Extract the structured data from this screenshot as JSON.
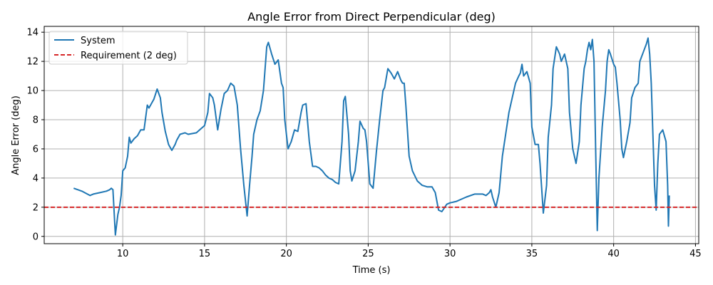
{
  "chart_data": {
    "type": "line",
    "title": "Angle Error from Direct Perpendicular (deg)",
    "xlabel": "Time (s)",
    "ylabel": "Angle Error (deg)",
    "xlim": [
      5.2,
      45.2
    ],
    "ylim": [
      -0.5,
      14.4
    ],
    "xticks": [
      10,
      15,
      20,
      25,
      30,
      35,
      40,
      45
    ],
    "yticks": [
      0,
      2,
      4,
      6,
      8,
      10,
      12,
      14
    ],
    "grid": true,
    "legend_position": "top-left",
    "series": [
      {
        "name": "System",
        "color": "#1f77b4",
        "style": "solid",
        "x": [
          7.0,
          7.5,
          8.0,
          8.2,
          8.6,
          9.0,
          9.2,
          9.3,
          9.4,
          9.55,
          9.7,
          9.8,
          9.9,
          10.0,
          10.15,
          10.3,
          10.4,
          10.5,
          10.7,
          10.9,
          11.1,
          11.3,
          11.5,
          11.6,
          11.7,
          11.8,
          11.9,
          12.1,
          12.3,
          12.4,
          12.6,
          12.8,
          13.0,
          13.2,
          13.3,
          13.5,
          13.8,
          14.0,
          14.5,
          14.8,
          15.0,
          15.2,
          15.3,
          15.5,
          15.6,
          15.8,
          16.0,
          16.2,
          16.4,
          16.6,
          16.8,
          17.0,
          17.2,
          17.4,
          17.6,
          17.75,
          17.9,
          18.0,
          18.2,
          18.4,
          18.6,
          18.8,
          18.9,
          19.1,
          19.3,
          19.5,
          19.7,
          19.8,
          19.9,
          20.1,
          20.3,
          20.5,
          20.7,
          20.9,
          21.0,
          21.2,
          21.4,
          21.6,
          21.7,
          21.8,
          22.0,
          22.2,
          22.4,
          22.6,
          22.8,
          23.0,
          23.2,
          23.4,
          23.5,
          23.6,
          23.8,
          23.9,
          24.0,
          24.2,
          24.4,
          24.5,
          24.7,
          24.8,
          24.9,
          25.1,
          25.3,
          25.5,
          25.7,
          25.9,
          26.0,
          26.2,
          26.4,
          26.6,
          26.8,
          27.0,
          27.1,
          27.2,
          27.3,
          27.5,
          27.7,
          28.0,
          28.3,
          28.6,
          28.9,
          29.1,
          29.3,
          29.5,
          29.8,
          30.0,
          30.4,
          30.8,
          31.0,
          31.5,
          32.0,
          32.2,
          32.4,
          32.5,
          32.6,
          32.8,
          33.0,
          33.2,
          33.4,
          33.6,
          33.8,
          34.0,
          34.2,
          34.3,
          34.4,
          34.5,
          34.7,
          34.9,
          35.0,
          35.2,
          35.4,
          35.5,
          35.7,
          35.9,
          36.0,
          36.2,
          36.3,
          36.5,
          36.7,
          36.8,
          37.0,
          37.2,
          37.3,
          37.5,
          37.7,
          37.9,
          38.0,
          38.2,
          38.3,
          38.4,
          38.5,
          38.6,
          38.7,
          38.8,
          38.9,
          39.0,
          39.1,
          39.3,
          39.5,
          39.6,
          39.7,
          39.8,
          40.0,
          40.1,
          40.2,
          40.4,
          40.5,
          40.6,
          40.8,
          41.0,
          41.1,
          41.3,
          41.5,
          41.6,
          41.8,
          42.0,
          42.1,
          42.2,
          42.3,
          42.4,
          42.5,
          42.6,
          42.7,
          42.8,
          43.0,
          43.2,
          43.3,
          43.35,
          43.4
        ],
        "y": [
          3.3,
          3.1,
          2.8,
          2.9,
          3.0,
          3.1,
          3.2,
          3.3,
          3.2,
          0.1,
          1.5,
          2.0,
          2.8,
          4.5,
          4.7,
          5.5,
          6.8,
          6.4,
          6.7,
          6.9,
          7.3,
          7.3,
          9.0,
          8.8,
          9.0,
          9.2,
          9.4,
          10.1,
          9.5,
          8.5,
          7.2,
          6.3,
          5.9,
          6.3,
          6.6,
          7.0,
          7.1,
          7.0,
          7.1,
          7.4,
          7.6,
          8.5,
          9.8,
          9.5,
          9.0,
          7.3,
          8.7,
          9.8,
          10.0,
          10.5,
          10.3,
          9.0,
          6.0,
          3.5,
          1.4,
          3.5,
          5.5,
          7.0,
          8.0,
          8.6,
          10.0,
          13.0,
          13.3,
          12.5,
          11.8,
          12.1,
          10.5,
          10.2,
          8.0,
          6.0,
          6.5,
          7.3,
          7.2,
          8.5,
          9.0,
          9.1,
          6.5,
          4.8,
          4.8,
          4.8,
          4.7,
          4.5,
          4.2,
          4.0,
          3.9,
          3.7,
          3.6,
          6.5,
          9.3,
          9.6,
          7.0,
          4.5,
          3.8,
          4.5,
          6.5,
          7.9,
          7.4,
          7.3,
          6.5,
          3.6,
          3.3,
          5.8,
          8.0,
          10.0,
          10.2,
          11.5,
          11.2,
          10.8,
          11.3,
          10.7,
          10.5,
          10.5,
          9.0,
          5.5,
          4.5,
          3.8,
          3.5,
          3.4,
          3.4,
          3.0,
          1.8,
          1.7,
          2.2,
          2.3,
          2.4,
          2.6,
          2.7,
          2.9,
          2.9,
          2.8,
          3.0,
          3.2,
          2.7,
          2.0,
          3.0,
          5.5,
          7.0,
          8.5,
          9.5,
          10.5,
          11.0,
          11.2,
          11.8,
          11.0,
          11.3,
          10.5,
          7.5,
          6.3,
          6.3,
          5.0,
          1.6,
          3.5,
          6.8,
          9.0,
          11.5,
          13.0,
          12.5,
          12.0,
          12.5,
          11.5,
          8.5,
          6.0,
          5.0,
          6.5,
          9.0,
          11.5,
          12.0,
          12.8,
          13.3,
          12.8,
          13.5,
          12.0,
          6.0,
          0.4,
          4.0,
          7.5,
          10.0,
          12.0,
          12.8,
          12.5,
          11.8,
          11.6,
          10.5,
          8.0,
          6.0,
          5.4,
          6.5,
          7.8,
          9.5,
          10.2,
          10.5,
          12.0,
          12.6,
          13.2,
          13.6,
          12.5,
          10.5,
          7.0,
          3.5,
          1.8,
          5.0,
          7.0,
          7.3,
          6.5,
          3.5,
          0.7,
          2.8
        ],
        "points_note": ""
      },
      {
        "name": "Requirement (2 deg)",
        "color": "#d62728",
        "style": "dashed",
        "y_constant": 2
      }
    ]
  }
}
